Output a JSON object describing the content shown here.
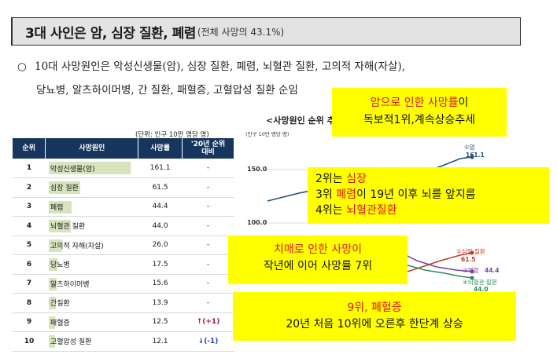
{
  "title": {
    "main": "3대 사인은 암, 심장 질환, 폐렴",
    "sub": "(전체 사망의 43.1%)"
  },
  "bullet": {
    "mark": "○",
    "line1": "10대 사망원인은 악성신생물(암), 심장 질환, 폐렴, 뇌혈관 질환, 고의적 자해(자살),",
    "line2": "당뇨병, 알츠하이머병, 간 질환, 패혈증, 고혈압성 질환 순임"
  },
  "table": {
    "unit_note": "(단위: 인구 10만 명당 명)",
    "headers": [
      "순위",
      "사망원인",
      "사망률",
      "'20년 순위 대비"
    ],
    "rows": [
      {
        "rank": "1",
        "cause": "악성신생물(암)",
        "rate": 161.1,
        "rate_text": "161.1",
        "change": "-",
        "dir": ""
      },
      {
        "rank": "2",
        "cause": "심장 질환",
        "rate": 61.5,
        "rate_text": "61.5",
        "change": "-",
        "dir": ""
      },
      {
        "rank": "3",
        "cause": "폐렴",
        "rate": 44.4,
        "rate_text": "44.4",
        "change": "-",
        "dir": ""
      },
      {
        "rank": "4",
        "cause": "뇌혈관 질환",
        "rate": 44.0,
        "rate_text": "44.0",
        "change": "-",
        "dir": ""
      },
      {
        "rank": "5",
        "cause": "고의적 자해(자살)",
        "rate": 26.0,
        "rate_text": "26.0",
        "change": "-",
        "dir": ""
      },
      {
        "rank": "6",
        "cause": "당뇨병",
        "rate": 17.5,
        "rate_text": "17.5",
        "change": "-",
        "dir": ""
      },
      {
        "rank": "7",
        "cause": "알츠하이머병",
        "rate": 15.6,
        "rate_text": "15.6",
        "change": "-",
        "dir": ""
      },
      {
        "rank": "8",
        "cause": "간질환",
        "rate": 13.9,
        "rate_text": "13.9",
        "change": "-",
        "dir": ""
      },
      {
        "rank": "9",
        "cause": "패혈증",
        "rate": 12.5,
        "rate_text": "12.5",
        "change": "(+1)",
        "dir": "up"
      },
      {
        "rank": "10",
        "cause": "고혈압성 질환",
        "rate": 12.1,
        "rate_text": "12.1",
        "change": "(-1)",
        "dir": "down"
      }
    ]
  },
  "chart": {
    "title": "<사망원인 순위 추이>",
    "unit": "(인구 10만 명당 명)",
    "y_tick_labels": [
      "150.0",
      "100.0"
    ],
    "series_labels": [
      {
        "label": "①암",
        "value": "161.1"
      },
      {
        "label": "②심장 질환",
        "value": "61.5"
      },
      {
        "label": "③폐렴",
        "value": "44.4"
      },
      {
        "label": "④뇌혈관 질환",
        "value": "44.0"
      }
    ]
  },
  "chart_data": {
    "type": "line",
    "title": "<사망원인 순위 추이>",
    "ylabel": "(인구 10만 명당 명)",
    "yticks": [
      100.0,
      150.0
    ],
    "series": [
      {
        "name": "①암",
        "last_value": 161.1
      },
      {
        "name": "②심장 질환",
        "last_value": 61.5
      },
      {
        "name": "③폐렴",
        "last_value": 44.4
      },
      {
        "name": "④뇌혈관 질환",
        "last_value": 44.0
      }
    ],
    "colors": {
      "cancer": "#1f4e79",
      "heart": "#c0392b",
      "pneumonia": "#7b3fa0",
      "cerebro": "#2e8b57"
    }
  },
  "callouts": {
    "c1": {
      "red": "암으로 인한 사망률",
      "black1": "이",
      "line2": "독보적1위,계속상승추세"
    },
    "c2": {
      "l1a": "2위는 ",
      "l1b": "심장",
      "l2a": "3위 ",
      "l2b": "폐렴",
      "l2c": "이 19년 이후 뇌를 앞지름",
      "l3a": "4위는 ",
      "l3b": "뇌혈관질환"
    },
    "c3": {
      "red": "치매로 인한 사망이",
      "line2": "작년에 이어 사망률 7위"
    },
    "c4": {
      "red": "9위, 폐혈증",
      "line2": "20년 처음 10위에 오른후 한단계 상승"
    }
  }
}
